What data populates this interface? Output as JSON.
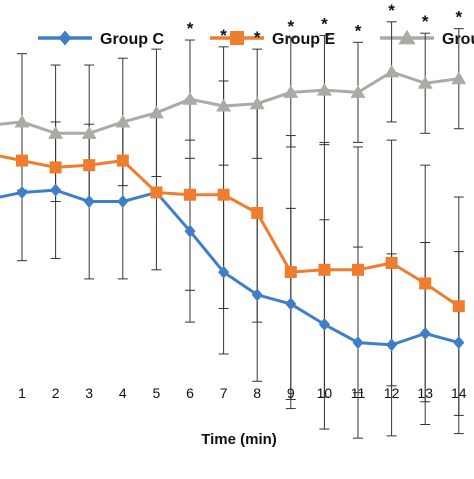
{
  "chart_data": {
    "type": "line",
    "title": "",
    "xlabel": "Time (min)",
    "ylabel": "",
    "x": [
      1,
      2,
      3,
      4,
      5,
      6,
      7,
      8,
      9,
      10,
      11,
      12,
      13,
      14
    ],
    "xlim": [
      -0.2,
      14.9
    ],
    "ylim": [
      0,
      100
    ],
    "grid": false,
    "legend_position": "top",
    "series": [
      {
        "name": "Group C",
        "color": "#3f7fc8",
        "marker": "diamond",
        "leading_value": 60,
        "values": [
          61,
          61.5,
          59,
          59,
          61,
          52.5,
          43.5,
          38.5,
          36.5,
          32,
          28,
          27.5,
          30,
          28
        ],
        "error": [
          15,
          15,
          17,
          17,
          17,
          20,
          18,
          19,
          21,
          23,
          21,
          20,
          20,
          20
        ]
      },
      {
        "name": "Group E",
        "color": "#ef7d2e",
        "marker": "square",
        "leading_value": 69,
        "values": [
          68,
          66.5,
          67,
          68,
          61,
          60.5,
          60.5,
          56.5,
          43.5,
          44,
          44,
          45.5,
          41,
          36
        ],
        "error": [
          0,
          0,
          0,
          0,
          0,
          21,
          25,
          24,
          30,
          28,
          27,
          27,
          26,
          24
        ]
      },
      {
        "name": "Group F",
        "color": "#a8aca4",
        "marker": "triangle",
        "leading_value": 76,
        "values": [
          76.5,
          74,
          74,
          76.5,
          78.5,
          81.5,
          80,
          80.5,
          83,
          83.5,
          83,
          87.5,
          85,
          86
        ],
        "error": [
          15,
          15,
          15,
          14,
          14,
          13,
          13,
          12,
          12,
          12,
          11,
          11,
          11,
          11
        ]
      }
    ],
    "tick_labels": [
      "1",
      "2",
      "3",
      "4",
      "5",
      "6",
      "7",
      "8",
      "9",
      "10",
      "11",
      "12",
      "13",
      "14"
    ],
    "annotations": {
      "symbol": "*",
      "x": [
        6,
        7,
        8,
        9,
        10,
        11,
        12,
        13,
        14
      ]
    },
    "legend": [
      {
        "label": "Group C",
        "color": "#3f7fc8",
        "marker": "diamond"
      },
      {
        "label": "Group E",
        "color": "#ef7d2e",
        "marker": "square"
      },
      {
        "label": "Group F",
        "color": "#a8aca4",
        "marker": "triangle"
      }
    ]
  }
}
